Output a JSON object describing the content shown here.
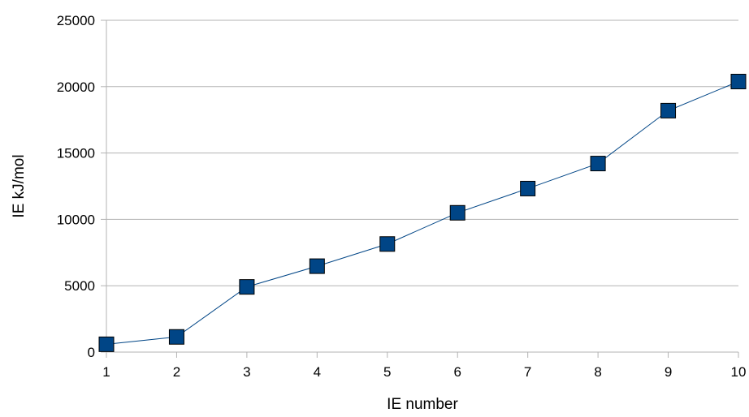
{
  "chart_data": {
    "type": "line",
    "title": "",
    "xlabel": "IE number",
    "ylabel": "IE kJ/mol",
    "x": [
      1,
      2,
      3,
      4,
      5,
      6,
      7,
      8,
      9,
      10
    ],
    "series": [
      {
        "values": [
          590,
          1145,
          4912,
          6474,
          8144,
          10496,
          12320,
          14207,
          18191,
          20385
        ],
        "color": "#004586",
        "marker": "square"
      }
    ],
    "xlim": [
      1,
      10
    ],
    "ylim": [
      0,
      25000
    ],
    "x_ticks": [
      1,
      2,
      3,
      4,
      5,
      6,
      7,
      8,
      9,
      10
    ],
    "y_ticks": [
      0,
      5000,
      10000,
      15000,
      20000,
      25000
    ],
    "grid": "horizontal",
    "gridline_color": "#b3b3b3",
    "legend": "none"
  }
}
